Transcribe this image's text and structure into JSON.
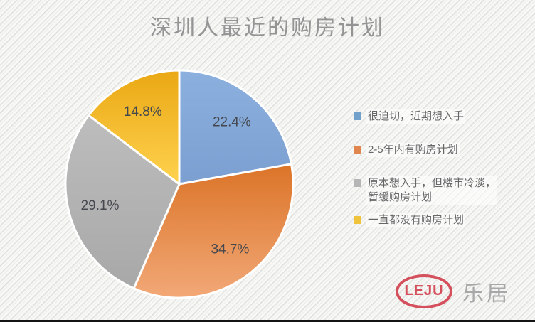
{
  "title": "深圳人最近的购房计划",
  "chart_data": {
    "type": "pie",
    "title": "深圳人最近的购房计划",
    "start_angle_deg": 0,
    "direction": "clockwise",
    "categories": [
      "很迫切，近期想入手",
      "2-5年内有购房计划",
      "原本想入手，但楼市冷淡，暂缓购房计划",
      "一直都没有购房计划"
    ],
    "values": [
      22.4,
      34.7,
      29.1,
      14.8
    ],
    "data_labels": [
      "22.4%",
      "34.7%",
      "29.1%",
      "14.8%"
    ],
    "colors": [
      "#7fa5d5",
      "#e08240",
      "#b0b0b0",
      "#f5bf25"
    ],
    "slice_gradients": [
      [
        "#8cb0de",
        "#7b9fd0"
      ],
      [
        "#db7428",
        "#f2a877"
      ],
      [
        "#bdbdbd",
        "#a8a8a8"
      ],
      [
        "#eaa814",
        "#ffd24f"
      ]
    ],
    "slice_border_color": "#ffffff",
    "label_color": "#44484e",
    "legend_position": "right"
  },
  "legend": {
    "items": [
      {
        "label": "很迫切，近期想入手",
        "color": "#71a0cb"
      },
      {
        "label": "2-5年内有购房计划",
        "color": "#e0854e"
      },
      {
        "label": "原本想入手，但楼市冷淡，\n暂缓购房计划",
        "color": "#b5b5b5"
      },
      {
        "label": "一直都没有购房计划",
        "color": "#f0c33c"
      }
    ]
  },
  "watermark": {
    "logo_text": "LEJU",
    "brand_text": "乐居",
    "logo_color": "#d4505c",
    "brand_color": "#a8a8a8"
  }
}
